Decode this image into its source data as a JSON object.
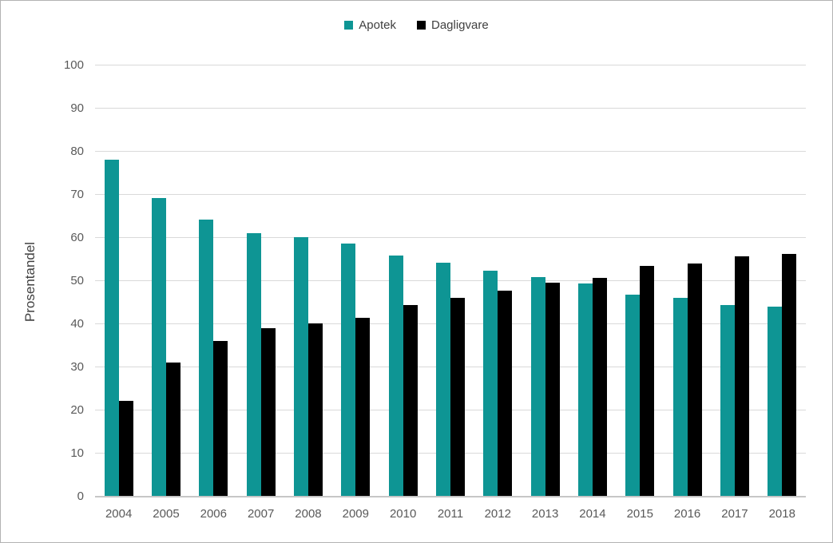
{
  "chart_data": {
    "type": "bar",
    "title": "",
    "xlabel": "",
    "ylabel": "Prosentandel",
    "ylim": [
      0,
      100
    ],
    "yticks": [
      0,
      10,
      20,
      30,
      40,
      50,
      60,
      70,
      80,
      90,
      100
    ],
    "grid": true,
    "legend_position": "top-center",
    "categories": [
      "2004",
      "2005",
      "2006",
      "2007",
      "2008",
      "2009",
      "2010",
      "2011",
      "2012",
      "2013",
      "2014",
      "2015",
      "2016",
      "2017",
      "2018"
    ],
    "series": [
      {
        "name": "Apotek",
        "color": "#0e9594",
        "values": [
          78,
          69,
          64,
          61,
          60,
          58.5,
          55.8,
          54,
          52.3,
          50.7,
          49.3,
          46.7,
          46,
          44.3,
          43.8
        ]
      },
      {
        "name": "Dagligvare",
        "color": "#000000",
        "values": [
          22,
          31,
          35.9,
          38.8,
          40,
          41.3,
          44.2,
          46,
          47.6,
          49.5,
          50.6,
          53.3,
          53.9,
          55.6,
          56.1
        ]
      }
    ]
  },
  "colors": {
    "gridline": "#d9d9d9",
    "baseline": "#c6c6c6",
    "tick_label": "#595959",
    "legend_text": "#404040",
    "figure_border": "#b3b3b3",
    "background": "#ffffff"
  }
}
